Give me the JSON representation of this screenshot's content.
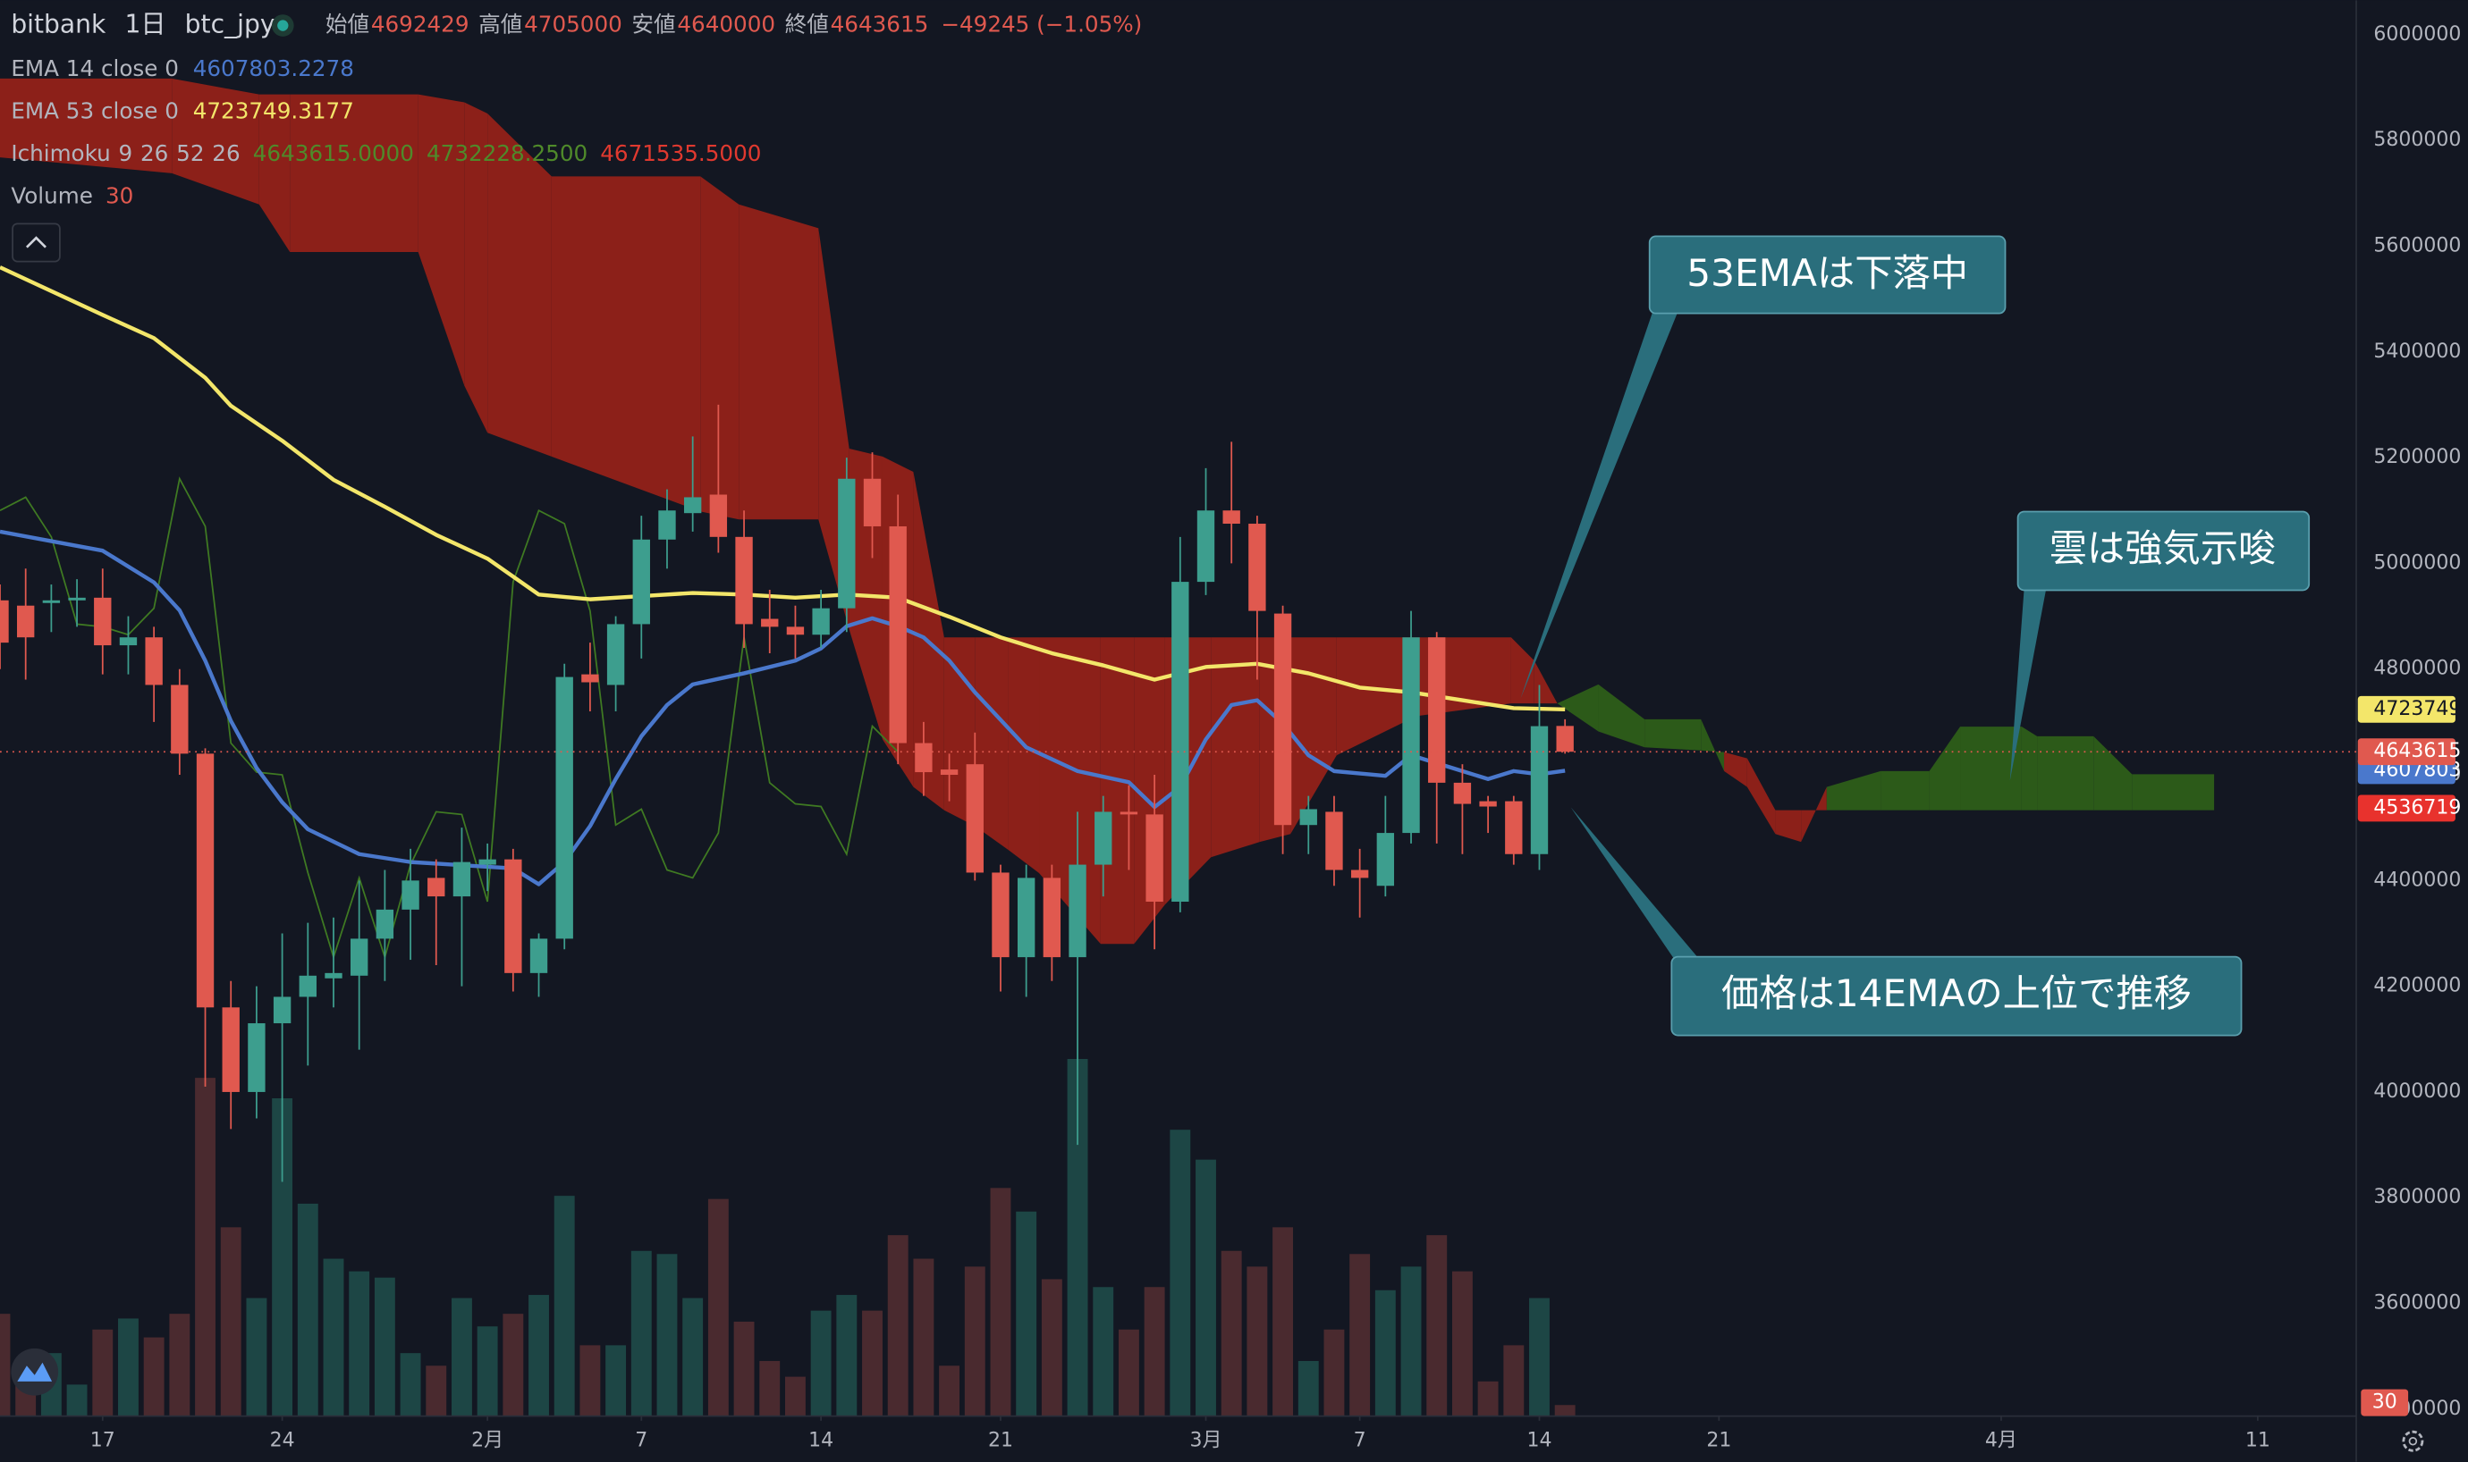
{
  "header": {
    "exchange": "bitbank",
    "interval": "1日",
    "symbol": "btc_jpy",
    "ohlc": [
      {
        "label": "始値",
        "value": "4692429"
      },
      {
        "label": "高値",
        "value": "4705000"
      },
      {
        "label": "安値",
        "value": "4640000"
      },
      {
        "label": "終値",
        "value": "4643615"
      }
    ],
    "change": "−49245 (−1.05%)"
  },
  "chart_data": {
    "type": "candlestick",
    "x": [
      0,
      1,
      2,
      3,
      4,
      5,
      6,
      7,
      8,
      9,
      10,
      11,
      12,
      13,
      14,
      15,
      16,
      17,
      18,
      19,
      20,
      21,
      22,
      23,
      24,
      25,
      26,
      27,
      28,
      29,
      30,
      31,
      32,
      33,
      34,
      35,
      36,
      37,
      38,
      39,
      40,
      41,
      42,
      43,
      44,
      45,
      46,
      47,
      48,
      49,
      50,
      51,
      52,
      53,
      54,
      55,
      56,
      57,
      58,
      59,
      60,
      61
    ],
    "open": [
      4930000,
      4920000,
      4925000,
      4930000,
      4935000,
      4845000,
      4860000,
      4770000,
      4640000,
      4160000,
      4000000,
      4130000,
      4180000,
      4215000,
      4220000,
      4290000,
      4345000,
      4405000,
      4370000,
      4430000,
      4440000,
      4225000,
      4290000,
      4790000,
      4770000,
      4885000,
      5045000,
      5095000,
      5130000,
      5050000,
      4895000,
      4880000,
      4865000,
      4915000,
      5160000,
      5070000,
      4660000,
      4610000,
      4620000,
      4415000,
      4255000,
      4405000,
      4255000,
      4430000,
      4530000,
      4525000,
      4360000,
      4965000,
      5100000,
      5075000,
      4905000,
      4505000,
      4530000,
      4420000,
      4390000,
      4490000,
      4860000,
      4585000,
      4550000,
      4550000,
      4450000,
      4692429
    ],
    "high": [
      4960000,
      4990000,
      4960000,
      4970000,
      4990000,
      4900000,
      4880000,
      4800000,
      4650000,
      4210000,
      4200000,
      4300000,
      4320000,
      4330000,
      4400000,
      4420000,
      4460000,
      4440000,
      4500000,
      4470000,
      4460000,
      4300000,
      4810000,
      4850000,
      4900000,
      5090000,
      5140000,
      5240000,
      5300000,
      5100000,
      4950000,
      4920000,
      4950000,
      5200000,
      5210000,
      5130000,
      4700000,
      4640000,
      4680000,
      4430000,
      4430000,
      4430000,
      4530000,
      4560000,
      4580000,
      4600000,
      5050000,
      5180000,
      5230000,
      5090000,
      4920000,
      4560000,
      4560000,
      4460000,
      4560000,
      4910000,
      4870000,
      4620000,
      4560000,
      4560000,
      4770000,
      4705000
    ],
    "low": [
      4800000,
      4780000,
      4870000,
      4880000,
      4790000,
      4790000,
      4700000,
      4600000,
      4010000,
      3930000,
      3950000,
      3830000,
      4050000,
      4160000,
      4080000,
      4210000,
      4250000,
      4240000,
      4200000,
      4380000,
      4190000,
      4180000,
      4270000,
      4720000,
      4720000,
      4820000,
      4990000,
      5060000,
      5020000,
      4840000,
      4830000,
      4820000,
      4840000,
      4870000,
      5010000,
      4620000,
      4560000,
      4550000,
      4400000,
      4190000,
      4180000,
      4210000,
      3900000,
      4370000,
      4420000,
      4270000,
      4340000,
      4940000,
      5000000,
      4780000,
      4450000,
      4450000,
      4390000,
      4330000,
      4370000,
      4470000,
      4470000,
      4450000,
      4490000,
      4430000,
      4420000,
      4640000
    ],
    "close": [
      4850000,
      4860000,
      4930000,
      4935000,
      4845000,
      4860000,
      4770000,
      4640000,
      4160000,
      4000000,
      4130000,
      4180000,
      4220000,
      4225000,
      4290000,
      4345000,
      4400000,
      4370000,
      4435000,
      4440000,
      4225000,
      4290000,
      4785000,
      4775000,
      4885000,
      5045000,
      5100000,
      5125000,
      5050000,
      4885000,
      4880000,
      4865000,
      4915000,
      5160000,
      5070000,
      4660000,
      4605000,
      4600000,
      4415000,
      4255000,
      4405000,
      4255000,
      4430000,
      4530000,
      4525000,
      4360000,
      4965000,
      5100000,
      5075000,
      4910000,
      4505000,
      4535000,
      4420000,
      4405000,
      4490000,
      4860000,
      4585000,
      4545000,
      4540000,
      4450000,
      4692000,
      4643615
    ],
    "volume": [
      65,
      20,
      40,
      20,
      55,
      62,
      50,
      65,
      215,
      120,
      75,
      202,
      135,
      100,
      92,
      88,
      40,
      32,
      75,
      57,
      65,
      77,
      140,
      45,
      45,
      105,
      103,
      75,
      138,
      60,
      35,
      25,
      67,
      77,
      67,
      115,
      100,
      32,
      95,
      145,
      130,
      87,
      227,
      82,
      55,
      82,
      182,
      163,
      105,
      95,
      120,
      35,
      55,
      103,
      80,
      95,
      115,
      92,
      22,
      45,
      75,
      7
    ],
    "volume_name": "Volume",
    "volume_length": 30,
    "colors": {
      "up": "#3d9e8e",
      "down": "#e0594f",
      "up_volume": "#1d4645",
      "down_volume": "#4a2a2f"
    },
    "lines": [
      {
        "name": "EMA 14 close 0",
        "value_label": "4607803.2278",
        "color": "#4a78cc",
        "x": [
          0,
          2,
          4,
          6,
          7,
          8,
          9,
          10,
          11,
          12,
          14,
          16,
          18,
          20,
          21,
          22,
          23,
          24,
          25,
          26,
          27,
          29,
          31,
          32,
          33,
          34,
          35,
          36,
          37,
          38,
          40,
          42,
          44,
          45,
          46,
          47,
          48,
          49,
          50,
          51,
          52,
          54,
          55,
          56,
          57,
          58,
          59,
          60,
          61
        ],
        "values": [
          5060000,
          5042000,
          5024000,
          4964000,
          4911000,
          4816000,
          4702000,
          4613000,
          4548000,
          4497000,
          4450000,
          4435000,
          4429000,
          4423000,
          4393000,
          4435000,
          4503000,
          4592000,
          4673000,
          4732000,
          4771000,
          4792000,
          4816000,
          4839000,
          4881000,
          4896000,
          4881000,
          4860000,
          4816000,
          4756000,
          4652000,
          4607000,
          4586000,
          4539000,
          4577000,
          4667000,
          4732000,
          4741000,
          4697000,
          4637000,
          4607000,
          4598000,
          4637000,
          4622000,
          4607000,
          4592000,
          4607000,
          4601000,
          4607803
        ]
      },
      {
        "name": "EMA 53 close 0",
        "value_label": "4723749.3177",
        "color": "#f3e66a",
        "x": [
          0,
          2,
          4,
          6,
          8,
          9,
          11,
          13,
          15,
          17,
          19,
          21,
          23,
          25,
          27,
          29,
          31,
          33,
          35,
          37,
          39,
          41,
          43,
          45,
          47,
          49,
          51,
          53,
          55,
          57,
          59,
          61
        ],
        "values": [
          5560000,
          5515000,
          5470000,
          5426000,
          5351000,
          5298000,
          5232000,
          5158000,
          5107000,
          5054000,
          5009000,
          4941000,
          4932000,
          4938000,
          4944000,
          4941000,
          4935000,
          4941000,
          4935000,
          4899000,
          4860000,
          4830000,
          4807000,
          4780000,
          4804000,
          4810000,
          4792000,
          4765000,
          4756000,
          4741000,
          4726000,
          4723749
        ]
      }
    ],
    "ichimoku": {
      "name": "Ichimoku",
      "params": [
        9,
        26,
        52,
        26
      ],
      "value_labels": [
        "4643615.0000",
        "4732228.2500",
        "4671535.5000"
      ],
      "value_colors": [
        "#4f8a2a",
        "#4f8a2a",
        "#e0392f"
      ],
      "bull_color": "#2c5a19",
      "bear_color": "#8c2019",
      "lagging_color": "#3f7a22",
      "x": [
        0,
        6.7,
        10.1,
        11.3,
        16.3,
        18.1,
        19,
        21.5,
        27.3,
        28.8,
        31.9,
        33.1,
        34.4,
        35.6,
        36.8,
        38,
        39.3,
        40.5,
        42.9,
        44.2,
        45.4,
        47.2,
        49.1,
        50.3,
        52.1,
        55.2,
        58.9,
        59.8,
        60.7,
        62.3,
        64.1,
        66.3,
        67.2,
        68.1,
        69.2,
        70.2,
        71.2,
        73.3,
        75.2,
        76.4,
        78.8,
        79.4,
        81.6,
        83.1,
        86.3
      ],
      "span_a": [
        5768000,
        5738000,
        5679000,
        5589000,
        5589000,
        5336000,
        5247000,
        5202000,
        5098000,
        5083000,
        5083000,
        4875000,
        4667000,
        4577000,
        4533000,
        4503000,
        4458000,
        4414000,
        4280000,
        4280000,
        4354000,
        4444000,
        4473000,
        4488000,
        4637000,
        4711000,
        4735000,
        4735000,
        4735000,
        4771000,
        4705000,
        4705000,
        4607000,
        4577000,
        4488000,
        4473000,
        4577000,
        4607000,
        4607000,
        4691000,
        4691000,
        4673000,
        4673000,
        4601000,
        4601000
      ],
      "span_b": [
        5917000,
        5917000,
        5887000,
        5887000,
        5887000,
        5872000,
        5851000,
        5732000,
        5732000,
        5679000,
        5634000,
        5217000,
        5202000,
        5173000,
        4860000,
        4860000,
        4860000,
        4860000,
        4860000,
        4860000,
        4860000,
        4860000,
        4860000,
        4860000,
        4860000,
        4860000,
        4860000,
        4816000,
        4735000,
        4682000,
        4652000,
        4646000,
        4643000,
        4631000,
        4533000,
        4533000,
        4533000,
        4533000,
        4533000,
        4533000,
        4533000,
        4533000,
        4533000,
        4533000,
        4533000
      ]
    },
    "price_tags": [
      {
        "value": 4607803,
        "color": "#4a78cc",
        "text_color": "#ffffff",
        "dashed_line": false
      },
      {
        "value": 4723749,
        "color": "#f3e66a",
        "text_color": "#131722",
        "dashed_line": false
      },
      {
        "value": 4643615,
        "color": "#e0594f",
        "text_color": "#ffffff",
        "dashed_line": true
      },
      {
        "value": 4536719,
        "color": "#e8322d",
        "text_color": "#ffffff",
        "dashed_line": false
      }
    ],
    "xlim": [
      0,
      91.84
    ],
    "xticks": [
      {
        "value": 4,
        "label": "17"
      },
      {
        "value": 11,
        "label": "24"
      },
      {
        "value": 19,
        "label": "2月"
      },
      {
        "value": 25,
        "label": "7"
      },
      {
        "value": 32,
        "label": "14"
      },
      {
        "value": 39,
        "label": "21"
      },
      {
        "value": 47,
        "label": "3月"
      },
      {
        "value": 53,
        "label": "7"
      },
      {
        "value": 60,
        "label": "14"
      },
      {
        "value": 67,
        "label": "21"
      },
      {
        "value": 78,
        "label": "4月"
      },
      {
        "value": 88,
        "label": "11"
      }
    ],
    "ylim": [
      3387000,
      6065000
    ],
    "yticks": [
      3400000,
      3600000,
      3800000,
      4000000,
      4200000,
      4400000,
      4600000,
      4800000,
      5000000,
      5200000,
      5400000,
      5600000,
      5800000,
      6000000
    ],
    "y2lim": [
      0,
      900
    ],
    "grid": false,
    "annotations": [
      "53EMAは下落中",
      "雲は強気示唆",
      "価格は14EMAの上位で推移"
    ]
  }
}
